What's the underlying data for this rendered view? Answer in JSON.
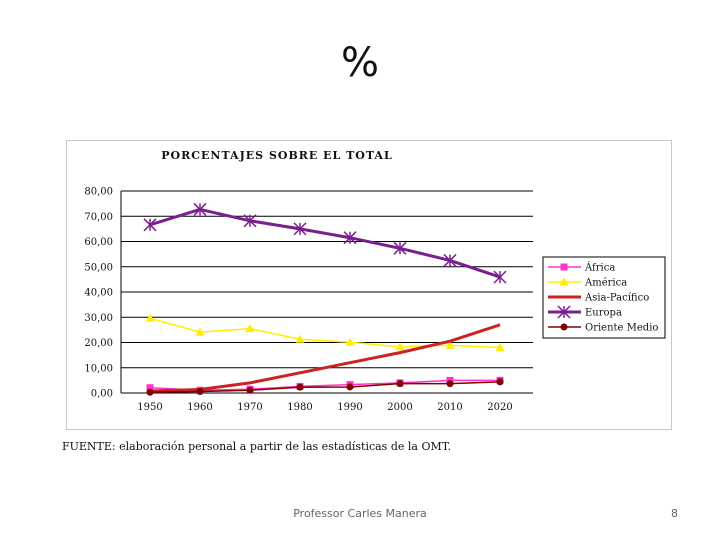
{
  "slide": {
    "title": "%",
    "source": "FUENTE: elaboración personal a partir de las estadísticas de la OMT.",
    "footer_author": "Professor Carles Manera",
    "page_number": "8"
  },
  "chart_data": {
    "type": "line",
    "title": "PORCENTAJES SOBRE EL TOTAL",
    "xlabel": "",
    "ylabel": "",
    "x": [
      "1950",
      "1960",
      "1970",
      "1980",
      "1990",
      "2000",
      "2010",
      "2020"
    ],
    "ylim": [
      0,
      80
    ],
    "yticks": [
      "0,00",
      "10,00",
      "20,00",
      "30,00",
      "40,00",
      "50,00",
      "60,00",
      "70,00",
      "80,00"
    ],
    "grid": true,
    "legend_position": "right",
    "series": [
      {
        "name": "África",
        "color": "#ff33cc",
        "marker": "square",
        "values": [
          2.1,
          1.1,
          1.5,
          2.6,
          3.3,
          4.0,
          5.0,
          5.0
        ]
      },
      {
        "name": "América",
        "color": "#ffee00",
        "marker": "triangle",
        "values": [
          29.6,
          24.1,
          25.5,
          21.3,
          20.1,
          18.3,
          18.9,
          18.0
        ]
      },
      {
        "name": "Asia-Pacífico",
        "color": "#cc2222",
        "marker": "none",
        "values": [
          0.8,
          1.4,
          4.0,
          8.0,
          12.0,
          16.0,
          20.5,
          27.0
        ]
      },
      {
        "name": "Europa",
        "color": "#7a1f8f",
        "marker": "star",
        "values": [
          66.6,
          72.7,
          68.2,
          65.0,
          61.5,
          57.3,
          52.5,
          45.9
        ]
      },
      {
        "name": "Oriente Medio",
        "color": "#800000",
        "marker": "circle",
        "values": [
          0.3,
          0.6,
          1.1,
          2.3,
          2.4,
          3.7,
          3.7,
          4.4
        ]
      }
    ]
  }
}
